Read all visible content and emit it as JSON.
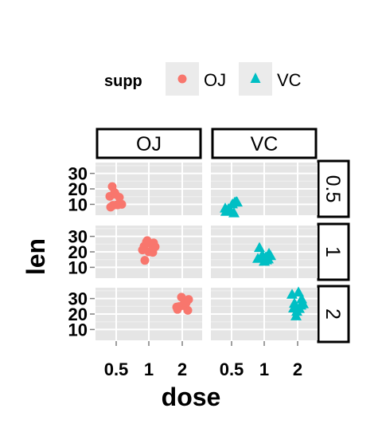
{
  "chart_data": {
    "type": "scatter",
    "xlabel": "dose",
    "ylabel": "len",
    "x_ticks": [
      "0.5",
      "1",
      "2"
    ],
    "y_ticks": [
      10,
      20,
      30
    ],
    "xlim": [
      0.3,
      2.3
    ],
    "ylim": [
      3,
      37
    ],
    "legend": {
      "title": "supp",
      "position": "top",
      "items": [
        {
          "label": "OJ",
          "shape": "circle",
          "color": "#F8766D"
        },
        {
          "label": "VC",
          "shape": "triangle",
          "color": "#00BFC4"
        }
      ]
    },
    "col_facets": [
      "OJ",
      "VC"
    ],
    "row_facets": [
      "0.5",
      "1",
      "2"
    ],
    "grid": true,
    "series": [
      {
        "name": "OJ",
        "points": [
          {
            "dose": 0.5,
            "len": 15.2
          },
          {
            "dose": 0.5,
            "len": 21.5
          },
          {
            "dose": 0.5,
            "len": 17.6
          },
          {
            "dose": 0.5,
            "len": 9.7
          },
          {
            "dose": 0.5,
            "len": 14.5
          },
          {
            "dose": 0.5,
            "len": 10.0
          },
          {
            "dose": 0.5,
            "len": 8.2
          },
          {
            "dose": 0.5,
            "len": 9.4
          },
          {
            "dose": 0.5,
            "len": 16.5
          },
          {
            "dose": 0.5,
            "len": 9.7
          },
          {
            "dose": 1,
            "len": 19.7
          },
          {
            "dose": 1,
            "len": 23.3
          },
          {
            "dose": 1,
            "len": 23.6
          },
          {
            "dose": 1,
            "len": 26.4
          },
          {
            "dose": 1,
            "len": 20.0
          },
          {
            "dose": 1,
            "len": 25.2
          },
          {
            "dose": 1,
            "len": 25.8
          },
          {
            "dose": 1,
            "len": 21.2
          },
          {
            "dose": 1,
            "len": 14.5
          },
          {
            "dose": 1,
            "len": 27.3
          },
          {
            "dose": 2,
            "len": 25.5
          },
          {
            "dose": 2,
            "len": 26.4
          },
          {
            "dose": 2,
            "len": 22.4
          },
          {
            "dose": 2,
            "len": 24.5
          },
          {
            "dose": 2,
            "len": 24.8
          },
          {
            "dose": 2,
            "len": 30.9
          },
          {
            "dose": 2,
            "len": 26.4
          },
          {
            "dose": 2,
            "len": 27.3
          },
          {
            "dose": 2,
            "len": 29.4
          },
          {
            "dose": 2,
            "len": 23.0
          }
        ]
      },
      {
        "name": "VC",
        "points": [
          {
            "dose": 0.5,
            "len": 4.2
          },
          {
            "dose": 0.5,
            "len": 11.5
          },
          {
            "dose": 0.5,
            "len": 7.3
          },
          {
            "dose": 0.5,
            "len": 5.8
          },
          {
            "dose": 0.5,
            "len": 6.4
          },
          {
            "dose": 0.5,
            "len": 10.0
          },
          {
            "dose": 0.5,
            "len": 11.2
          },
          {
            "dose": 0.5,
            "len": 11.2
          },
          {
            "dose": 0.5,
            "len": 5.2
          },
          {
            "dose": 0.5,
            "len": 7.0
          },
          {
            "dose": 1,
            "len": 16.5
          },
          {
            "dose": 1,
            "len": 16.5
          },
          {
            "dose": 1,
            "len": 15.2
          },
          {
            "dose": 1,
            "len": 17.3
          },
          {
            "dose": 1,
            "len": 22.5
          },
          {
            "dose": 1,
            "len": 17.3
          },
          {
            "dose": 1,
            "len": 13.6
          },
          {
            "dose": 1,
            "len": 14.5
          },
          {
            "dose": 1,
            "len": 18.8
          },
          {
            "dose": 1,
            "len": 15.5
          },
          {
            "dose": 2,
            "len": 23.6
          },
          {
            "dose": 2,
            "len": 18.5
          },
          {
            "dose": 2,
            "len": 33.9
          },
          {
            "dose": 2,
            "len": 25.5
          },
          {
            "dose": 2,
            "len": 26.4
          },
          {
            "dose": 2,
            "len": 32.5
          },
          {
            "dose": 2,
            "len": 26.7
          },
          {
            "dose": 2,
            "len": 21.5
          },
          {
            "dose": 2,
            "len": 23.3
          },
          {
            "dose": 2,
            "len": 29.5
          }
        ]
      }
    ]
  }
}
